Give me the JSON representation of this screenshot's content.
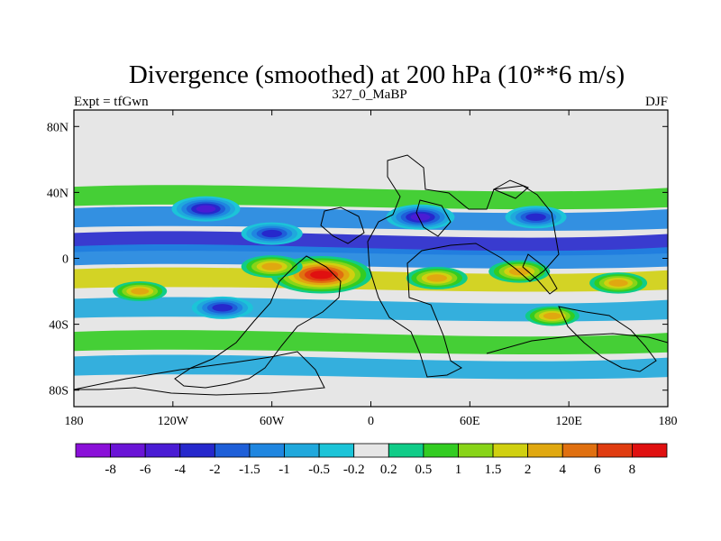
{
  "chart_data": {
    "type": "heatmap",
    "title": "Divergence (smoothed) at 200 hPa (10**6 m/s)",
    "left_string": "Expt = tfGwn",
    "center_string": "327_0_MaBP",
    "right_string": "DJF",
    "x_range": [
      -180,
      180
    ],
    "y_range": [
      -90,
      90
    ],
    "x_ticks": [
      {
        "value": -180,
        "label": "180"
      },
      {
        "value": -120,
        "label": "120W"
      },
      {
        "value": -60,
        "label": "60W"
      },
      {
        "value": 0,
        "label": "0"
      },
      {
        "value": 60,
        "label": "60E"
      },
      {
        "value": 120,
        "label": "120E"
      },
      {
        "value": 180,
        "label": "180"
      }
    ],
    "y_ticks": [
      {
        "value": 80,
        "label": "80N"
      },
      {
        "value": 40,
        "label": "40N"
      },
      {
        "value": 0,
        "label": "0"
      },
      {
        "value": -40,
        "label": "40S"
      },
      {
        "value": -80,
        "label": "80S"
      }
    ],
    "colorbar": {
      "levels": [
        "-8",
        "-6",
        "-4",
        "-2",
        "-1.5",
        "-1",
        "-0.5",
        "-0.2",
        "0.2",
        "0.5",
        "1",
        "1.5",
        "2",
        "4",
        "6",
        "8"
      ],
      "colors": [
        "#8a10d8",
        "#6a14d6",
        "#4a1cd4",
        "#2628cc",
        "#1e5fd8",
        "#1f86e0",
        "#20a8dc",
        "#1cc4d8",
        "#e6e6e6",
        "#10cc88",
        "#33cc22",
        "#88d418",
        "#d0d010",
        "#e0a810",
        "#e07010",
        "#e03c10",
        "#e01010"
      ]
    },
    "bands": [
      {
        "lat": 10,
        "div": -2.5
      },
      {
        "lat": 2,
        "div": -1.2
      },
      {
        "lat": -12,
        "div": 1.8
      },
      {
        "lat": -30,
        "div": -1.0
      },
      {
        "lat": 25,
        "div": -1.5
      },
      {
        "lat": 38,
        "div": 0.6
      },
      {
        "lat": -50,
        "div": 0.8
      },
      {
        "lat": -65,
        "div": -0.6
      }
    ],
    "features": [
      {
        "lon": -30,
        "lat": -10,
        "div": 8.5
      },
      {
        "lon": -60,
        "lat": -5,
        "div": 3
      },
      {
        "lon": 40,
        "lat": -12,
        "div": 3
      },
      {
        "lon": 90,
        "lat": -8,
        "div": 3
      },
      {
        "lon": 150,
        "lat": -15,
        "div": 2.5
      },
      {
        "lon": -140,
        "lat": -20,
        "div": 2
      },
      {
        "lon": -100,
        "lat": 30,
        "div": -4
      },
      {
        "lon": 30,
        "lat": 25,
        "div": -4
      },
      {
        "lon": 100,
        "lat": 25,
        "div": -3
      },
      {
        "lon": -90,
        "lat": -30,
        "div": -3
      },
      {
        "lon": 110,
        "lat": -35,
        "div": 2
      },
      {
        "lon": -60,
        "lat": 15,
        "div": -3
      }
    ]
  }
}
